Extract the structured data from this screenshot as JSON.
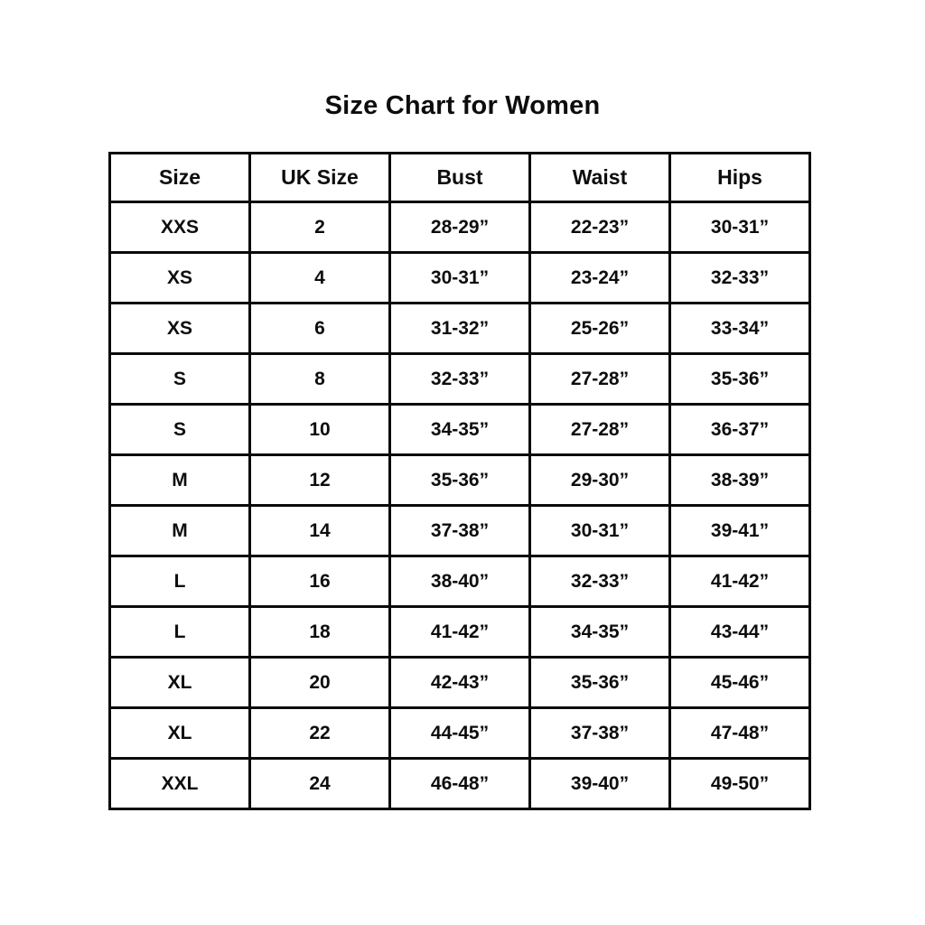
{
  "page": {
    "title": "Size Chart for Women"
  },
  "chart_data": {
    "type": "table",
    "title": "Size Chart for Women",
    "headers": [
      "Size",
      "UK Size",
      "Bust",
      "Waist",
      "Hips"
    ],
    "rows": [
      [
        "XXS",
        "2",
        "28-29”",
        "22-23”",
        "30-31”"
      ],
      [
        "XS",
        "4",
        "30-31”",
        "23-24”",
        "32-33”"
      ],
      [
        "XS",
        "6",
        "31-32”",
        "25-26”",
        "33-34”"
      ],
      [
        "S",
        "8",
        "32-33”",
        "27-28”",
        "35-36”"
      ],
      [
        "S",
        "10",
        "34-35”",
        "27-28”",
        "36-37”"
      ],
      [
        "M",
        "12",
        "35-36”",
        "29-30”",
        "38-39”"
      ],
      [
        "M",
        "14",
        "37-38”",
        "30-31”",
        "39-41”"
      ],
      [
        "L",
        "16",
        "38-40”",
        "32-33”",
        "41-42”"
      ],
      [
        "L",
        "18",
        "41-42”",
        "34-35”",
        "43-44”"
      ],
      [
        "XL",
        "20",
        "42-43”",
        "35-36”",
        "45-46”"
      ],
      [
        "XL",
        "22",
        "44-45”",
        "37-38”",
        "47-48”"
      ],
      [
        "XXL",
        "24",
        "46-48”",
        "39-40”",
        "49-50”"
      ]
    ],
    "column_keys": [
      "size",
      "uk-size",
      "bust",
      "waist",
      "hips"
    ],
    "text_color": "#0d0d0d",
    "border_color": "#0a0a0a",
    "background_color": "#ffffff",
    "units": "inches"
  }
}
